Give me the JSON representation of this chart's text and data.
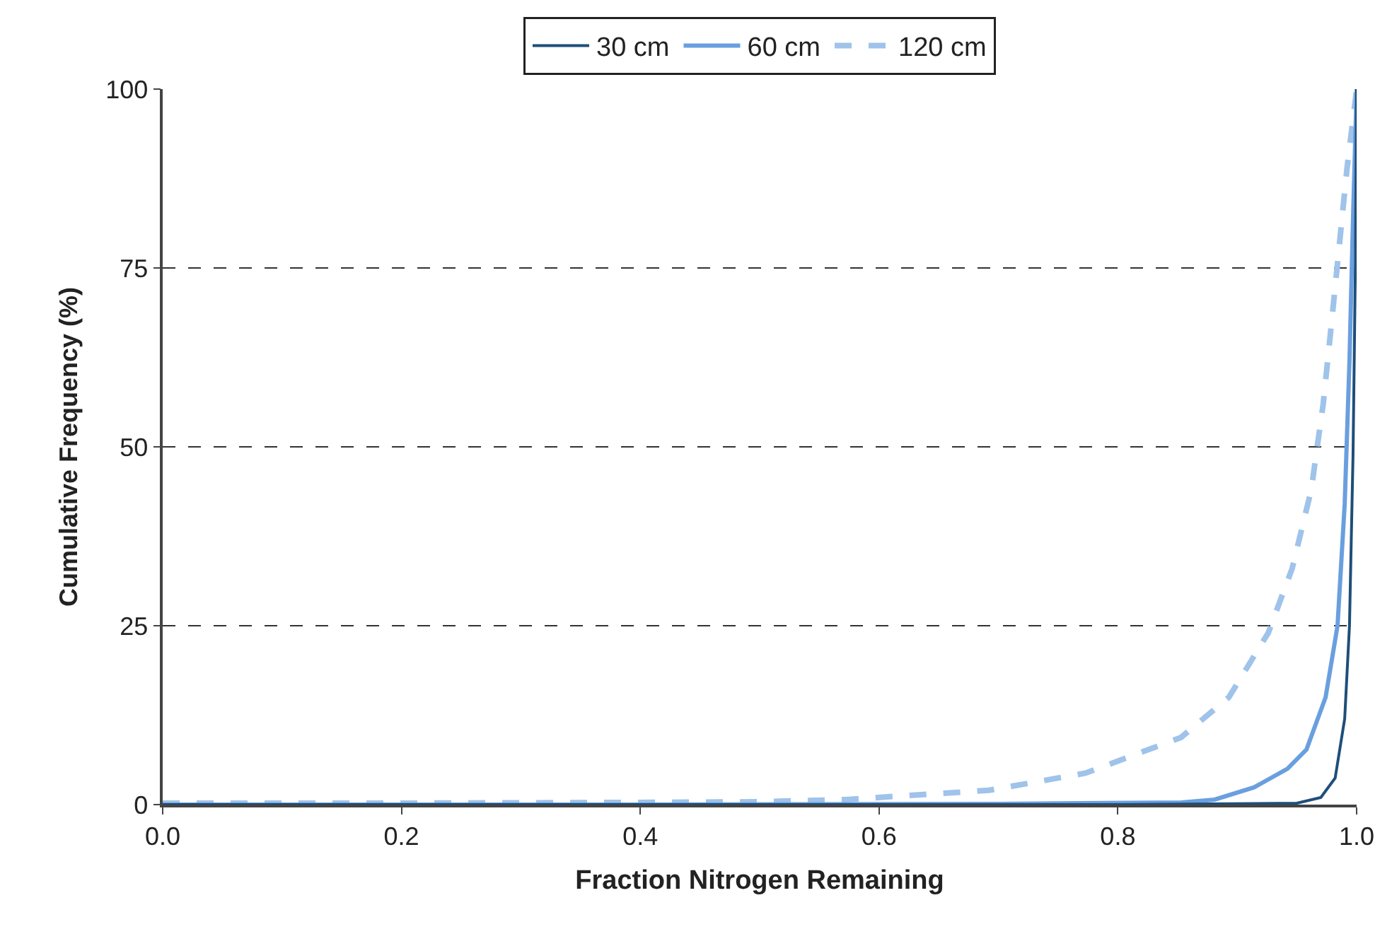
{
  "chart_data": {
    "type": "line",
    "xlabel": "Fraction Nitrogen Remaining",
    "ylabel": "Cumulative Frequency (%)",
    "xlim": [
      0,
      1
    ],
    "xticks": [
      {
        "value": 0,
        "label": "0.0"
      },
      0.2,
      0.4,
      0.6,
      0.8,
      {
        "value": 1,
        "label": "1.0"
      }
    ],
    "ylim": [
      0,
      100
    ],
    "yticks": [
      0,
      25,
      50,
      75,
      100
    ],
    "grid": "y",
    "legend": "top",
    "marker": "none",
    "series": [
      {
        "name": "30 cm",
        "color": "#1f4e79",
        "line_style": "solid",
        "x": [
          0,
          0.4,
          0.8,
          0.95,
          0.97,
          0.982,
          0.99,
          0.994,
          0.997,
          0.999,
          1.0
        ],
        "values": [
          0,
          0,
          0,
          0.2,
          1,
          3.7,
          12,
          25,
          49,
          76,
          100
        ]
      },
      {
        "name": "60 cm",
        "color": "#6a9fdf",
        "line_style": "solid",
        "x": [
          0,
          0.4,
          0.7,
          0.853,
          0.881,
          0.914,
          0.942,
          0.958,
          0.974,
          0.984,
          0.99,
          0.994,
          0.997,
          1.0
        ],
        "values": [
          0,
          0,
          0.1,
          0.3,
          0.7,
          2.4,
          5,
          7.7,
          15,
          25,
          42,
          62,
          82,
          100
        ]
      },
      {
        "name": "120 cm",
        "color": "#9fc3ea",
        "line_style": "dashed",
        "x": [
          0,
          0.2,
          0.4,
          0.5,
          0.572,
          0.692,
          0.773,
          0.853,
          0.893,
          0.926,
          0.946,
          0.962,
          0.972,
          0.98,
          0.986,
          0.992,
          1.0
        ],
        "values": [
          0.2,
          0.2,
          0.3,
          0.4,
          0.7,
          2,
          4.4,
          9.4,
          15,
          24,
          33,
          44,
          56,
          69,
          79,
          89,
          100
        ]
      }
    ]
  }
}
